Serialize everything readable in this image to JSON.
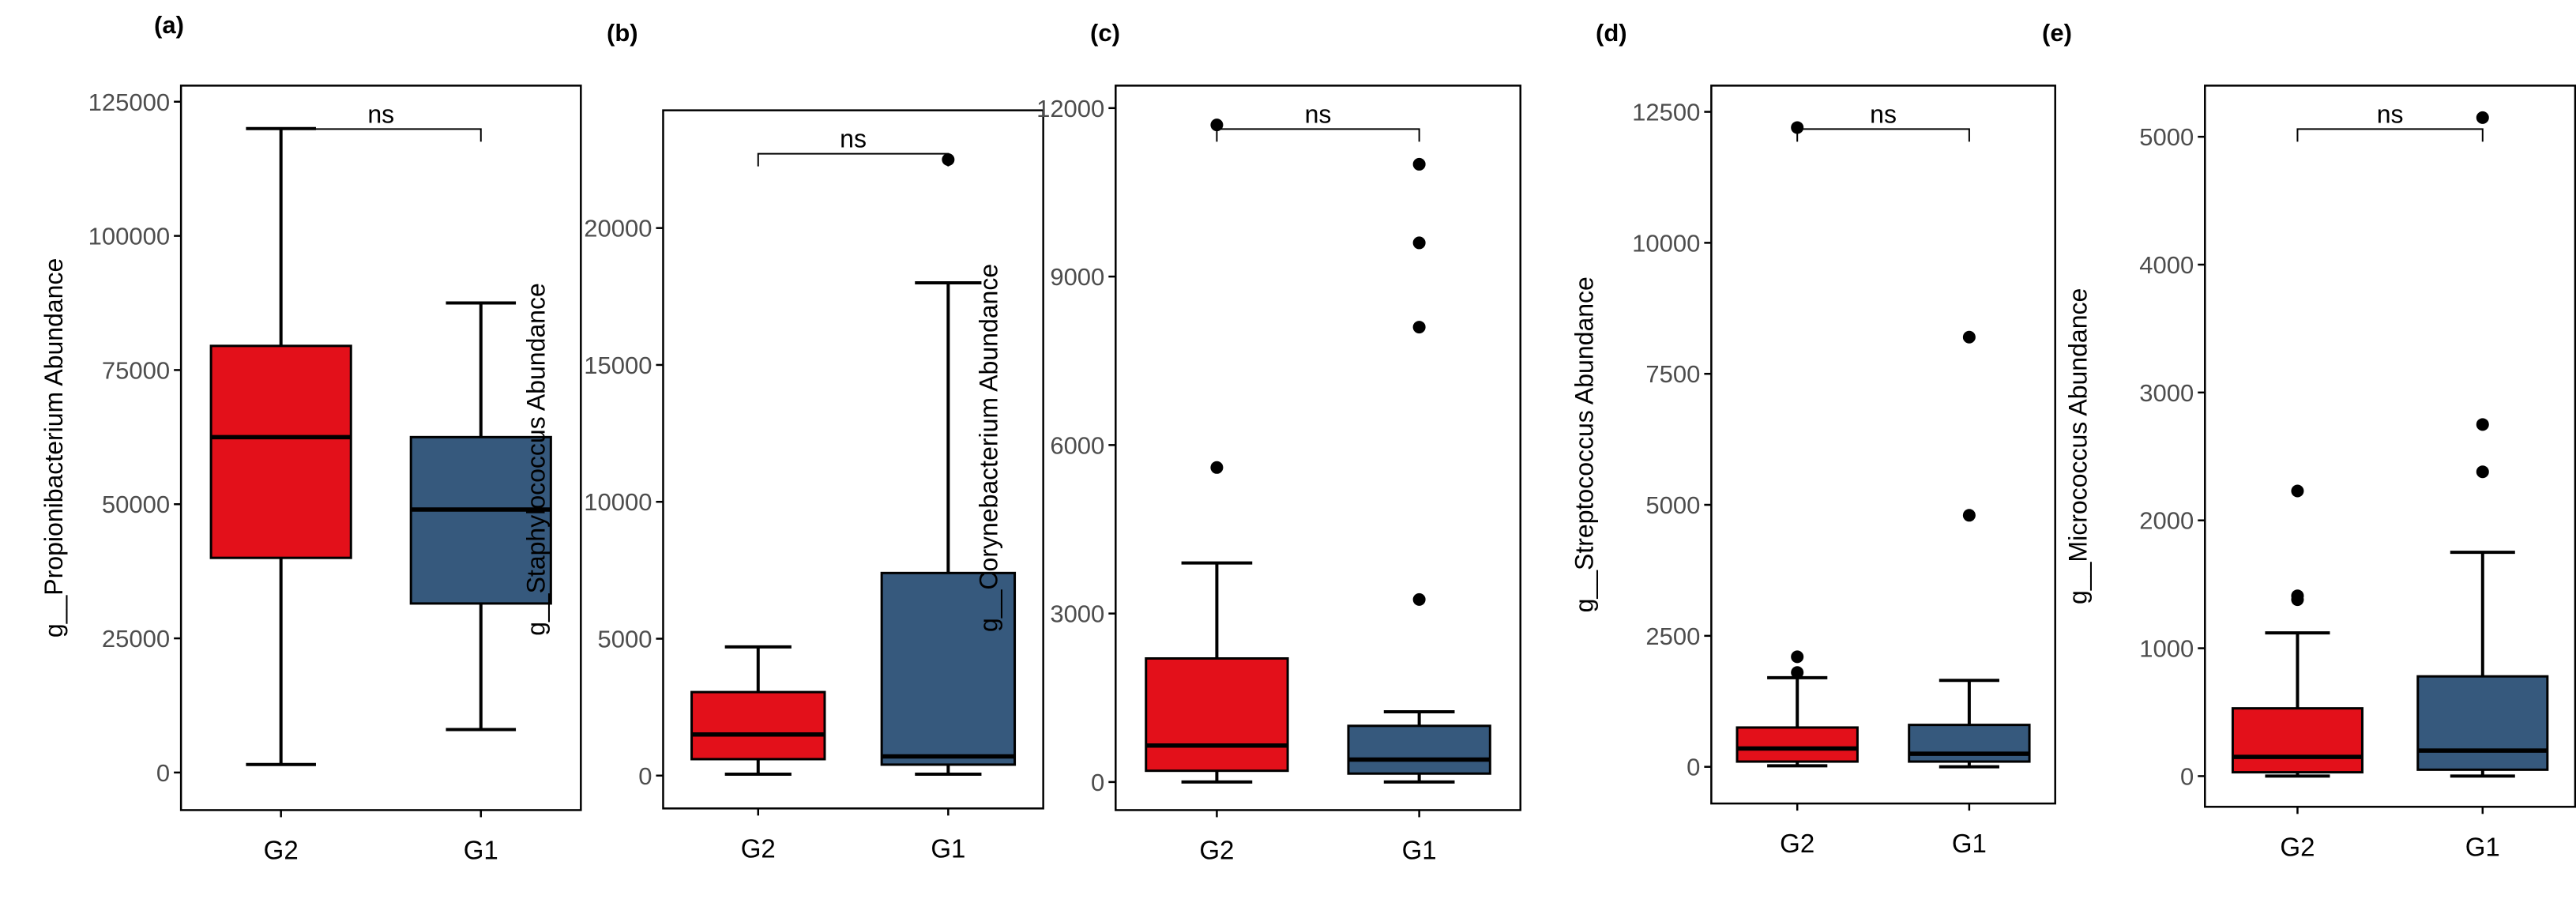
{
  "colors": {
    "G2": "#e3101a",
    "G1": "#36597d",
    "axis": "#000000",
    "text": "#4d4d4d"
  },
  "chart_data": [
    {
      "panel_label": "(a)",
      "type": "boxplot",
      "ylabel": "g__Propionibacterium Abundance",
      "ylim": [
        -7000,
        128000
      ],
      "yticks": [
        0,
        25000,
        50000,
        75000,
        100000,
        125000
      ],
      "ytick_labels": [
        "0",
        "25000",
        "50000",
        "75000",
        "100000",
        "125000"
      ],
      "categories": [
        "G2",
        "G1"
      ],
      "significance": "ns",
      "boxes": [
        {
          "group": "G2",
          "min": 1500,
          "q1": 40000,
          "median": 62500,
          "q3": 79500,
          "max": 120000,
          "outliers": []
        },
        {
          "group": "G1",
          "min": 8000,
          "q1": 31500,
          "median": 49000,
          "q3": 62500,
          "max": 87500,
          "outliers": []
        }
      ]
    },
    {
      "panel_label": "(b)",
      "type": "boxplot",
      "ylabel": "g__Staphylococcus Abundance",
      "ylim": [
        -1200,
        24300
      ],
      "yticks": [
        0,
        5000,
        10000,
        15000,
        20000
      ],
      "ytick_labels": [
        "0",
        "5000",
        "10000",
        "15000",
        "20000"
      ],
      "categories": [
        "G2",
        "G1"
      ],
      "significance": "ns",
      "boxes": [
        {
          "group": "G2",
          "min": 50,
          "q1": 600,
          "median": 1500,
          "q3": 3050,
          "max": 4700,
          "outliers": []
        },
        {
          "group": "G1",
          "min": 50,
          "q1": 400,
          "median": 700,
          "q3": 7400,
          "max": 18000,
          "outliers": [
            22500
          ]
        }
      ]
    },
    {
      "panel_label": "(c)",
      "type": "boxplot",
      "ylabel": "g__Corynebacterium Abundance",
      "ylim": [
        -500,
        12400
      ],
      "yticks": [
        0,
        3000,
        6000,
        9000,
        12000
      ],
      "ytick_labels": [
        "0",
        "3000",
        "6000",
        "9000",
        "12000"
      ],
      "categories": [
        "G2",
        "G1"
      ],
      "significance": "ns",
      "boxes": [
        {
          "group": "G2",
          "min": 0,
          "q1": 200,
          "median": 650,
          "q3": 2200,
          "max": 3900,
          "outliers": [
            5600,
            11700
          ]
        },
        {
          "group": "G1",
          "min": 0,
          "q1": 150,
          "median": 400,
          "q3": 1000,
          "max": 1250,
          "outliers": [
            3250,
            8100,
            9600,
            11000
          ]
        }
      ]
    },
    {
      "panel_label": "(d)",
      "type": "boxplot",
      "ylabel": "g__Streptococcus Abundance",
      "ylim": [
        -700,
        13000
      ],
      "yticks": [
        0,
        2500,
        5000,
        7500,
        10000,
        12500
      ],
      "ytick_labels": [
        "0",
        "2500",
        "5000",
        "7500",
        "10000",
        "12500"
      ],
      "categories": [
        "G2",
        "G1"
      ],
      "significance": "ns",
      "boxes": [
        {
          "group": "G2",
          "min": 20,
          "q1": 100,
          "median": 350,
          "q3": 750,
          "max": 1700,
          "outliers": [
            1800,
            2100,
            12200
          ]
        },
        {
          "group": "G1",
          "min": 0,
          "q1": 100,
          "median": 250,
          "q3": 800,
          "max": 1650,
          "outliers": [
            4800,
            8200
          ]
        }
      ]
    },
    {
      "panel_label": "(e)",
      "type": "boxplot",
      "ylabel": "g__Micrococcus Abundance",
      "ylim": [
        -240,
        5400
      ],
      "yticks": [
        0,
        1000,
        2000,
        3000,
        4000,
        5000
      ],
      "ytick_labels": [
        "0",
        "1000",
        "2000",
        "3000",
        "4000",
        "5000"
      ],
      "categories": [
        "G2",
        "G1"
      ],
      "significance": "ns",
      "boxes": [
        {
          "group": "G2",
          "min": 0,
          "q1": 30,
          "median": 150,
          "q3": 530,
          "max": 1120,
          "outliers": [
            1380,
            1410,
            2230
          ]
        },
        {
          "group": "G1",
          "min": 0,
          "q1": 50,
          "median": 200,
          "q3": 780,
          "max": 1750,
          "outliers": [
            2380,
            2750,
            5150
          ]
        }
      ]
    }
  ]
}
